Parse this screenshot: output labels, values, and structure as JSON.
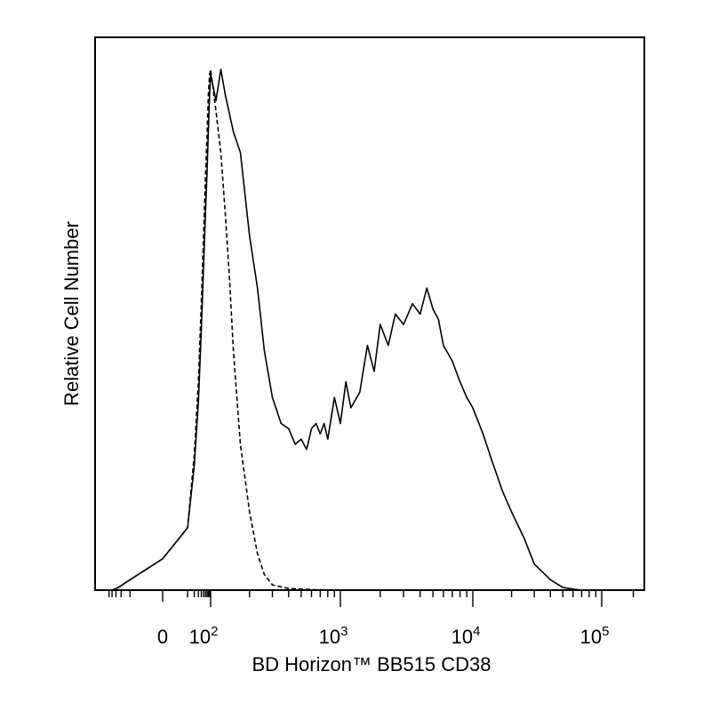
{
  "chart_data": {
    "type": "line",
    "title": "",
    "xlabel": "BD Horizon™ BB515 CD38",
    "ylabel": "Relative Cell Number",
    "x_scale": "biexponential (logicle)",
    "ylim": [
      0,
      100
    ],
    "grid": false,
    "legend": "none",
    "x_ticks": [
      {
        "value": 0,
        "label": "0",
        "exp": ""
      },
      {
        "value": 100,
        "label": "10",
        "exp": "2"
      },
      {
        "value": 1000,
        "label": "10",
        "exp": "3"
      },
      {
        "value": 10000,
        "label": "10",
        "exp": "4"
      },
      {
        "value": 100000,
        "label": "10",
        "exp": "5"
      }
    ],
    "series": [
      {
        "style": "solid",
        "x": [
          -40,
          -25,
          -10,
          0,
          10,
          20,
          30,
          40,
          50,
          60,
          70,
          80,
          90,
          100,
          110,
          120,
          130,
          150,
          170,
          200,
          230,
          260,
          300,
          350,
          400,
          450,
          500,
          550,
          600,
          650,
          700,
          750,
          800,
          900,
          1000,
          1100,
          1200,
          1400,
          1600,
          1800,
          2000,
          2300,
          2600,
          3000,
          3500,
          4000,
          4500,
          5000,
          5500,
          6000,
          7000,
          8000,
          9000,
          10000,
          12000,
          14000,
          17000,
          20000,
          25000,
          30000,
          40000,
          50000,
          60000,
          70000
        ],
        "y": [
          0,
          0.5,
          2,
          6,
          12,
          24,
          36,
          50,
          62,
          72,
          80,
          88,
          95,
          99,
          94,
          100,
          95,
          88,
          84,
          68,
          58,
          46,
          37,
          32,
          31,
          28,
          29,
          27,
          31,
          32,
          30,
          32,
          29,
          37,
          32,
          40,
          35,
          38,
          47,
          42,
          51,
          47,
          53,
          51,
          55,
          53,
          58,
          54,
          52,
          47,
          44,
          40,
          37,
          35,
          30,
          25,
          19,
          15,
          10,
          5,
          2,
          0.5,
          0.2,
          0
        ]
      },
      {
        "style": "dashed",
        "x": [
          -40,
          -25,
          -10,
          0,
          10,
          20,
          30,
          40,
          50,
          60,
          70,
          80,
          90,
          100,
          110,
          120,
          130,
          140,
          150,
          170,
          200,
          230,
          260,
          300,
          400,
          600,
          1000,
          2000,
          5000,
          10000,
          70000
        ],
        "y": [
          0,
          0.5,
          2,
          6,
          12,
          26,
          40,
          55,
          68,
          79,
          87,
          95,
          99,
          100,
          92,
          84,
          72,
          60,
          46,
          28,
          15,
          7,
          3,
          1,
          0.3,
          0.1,
          0,
          0,
          0,
          0,
          0
        ]
      }
    ]
  }
}
